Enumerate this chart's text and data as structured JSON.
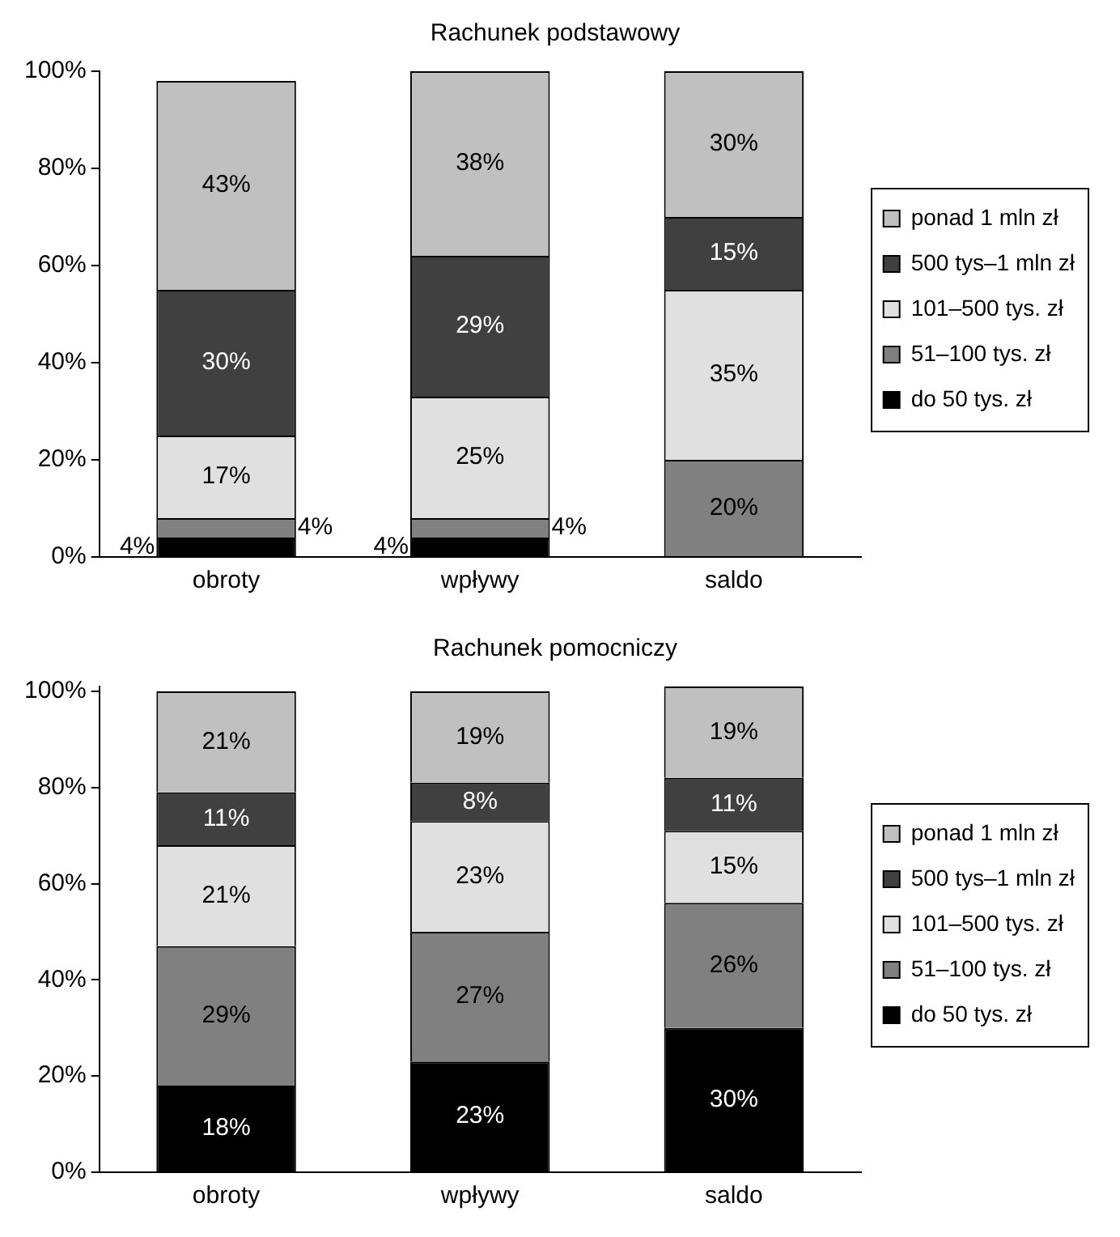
{
  "chart_data": [
    {
      "type": "bar",
      "title": "Rachunek podstawowy",
      "stacked": true,
      "categories": [
        "obroty",
        "wpływy",
        "saldo"
      ],
      "series": [
        {
          "name": "do 50 tys. zł",
          "color": "#000000",
          "values": [
            4,
            4,
            null
          ],
          "value_labels": [
            "4%",
            "4%",
            null
          ]
        },
        {
          "name": "51–100 tys. zł",
          "color": "#808080",
          "values": [
            4,
            4,
            20
          ],
          "value_labels": [
            "4%",
            "4%",
            "20%"
          ]
        },
        {
          "name": "101–500 tys. zł",
          "color": "#e0e0e0",
          "values": [
            17,
            25,
            35
          ],
          "value_labels": [
            "17%",
            "25%",
            "35%"
          ]
        },
        {
          "name": "500 tys–1 mln zł",
          "color": "#404040",
          "values": [
            30,
            29,
            15
          ],
          "value_labels": [
            "30%",
            "29%",
            "15%"
          ]
        },
        {
          "name": "ponad 1 mln zł",
          "color": "#c0c0c0",
          "values": [
            43,
            38,
            30
          ],
          "value_labels": [
            "43%",
            "38%",
            "30%"
          ]
        }
      ],
      "ylim": [
        0,
        100
      ],
      "yticks": [
        {
          "value": 0,
          "label": "0%"
        },
        {
          "value": 20,
          "label": "20%"
        },
        {
          "value": 40,
          "label": "40%"
        },
        {
          "value": 60,
          "label": "60%"
        },
        {
          "value": 80,
          "label": "80%"
        },
        {
          "value": 100,
          "label": "100%"
        }
      ],
      "grid": false,
      "legend": "right"
    },
    {
      "type": "bar",
      "title": "Rachunek pomocniczy",
      "stacked": true,
      "categories": [
        "obroty",
        "wpływy",
        "saldo"
      ],
      "series": [
        {
          "name": "do 50 tys. zł",
          "color": "#000000",
          "values": [
            18,
            23,
            30
          ],
          "value_labels": [
            "18%",
            "23%",
            "30%"
          ]
        },
        {
          "name": "51–100 tys. zł",
          "color": "#808080",
          "values": [
            29,
            27,
            26
          ],
          "value_labels": [
            "29%",
            "27%",
            "26%"
          ]
        },
        {
          "name": "101–500 tys. zł",
          "color": "#e0e0e0",
          "values": [
            21,
            23,
            15
          ],
          "value_labels": [
            "21%",
            "23%",
            "15%"
          ]
        },
        {
          "name": "500 tys–1 mln zł",
          "color": "#404040",
          "values": [
            11,
            8,
            11
          ],
          "value_labels": [
            "11%",
            "8%",
            "11%"
          ]
        },
        {
          "name": "ponad 1 mln zł",
          "color": "#c0c0c0",
          "values": [
            21,
            19,
            19
          ],
          "value_labels": [
            "21%",
            "19%",
            "19%"
          ]
        }
      ],
      "ylim": [
        0,
        101
      ],
      "yticks": [
        {
          "value": 0,
          "label": "0%"
        },
        {
          "value": 20,
          "label": "20%"
        },
        {
          "value": 40,
          "label": "40%"
        },
        {
          "value": 60,
          "label": "60%"
        },
        {
          "value": 80,
          "label": "80%"
        },
        {
          "value": 100,
          "label": "100%"
        }
      ],
      "grid": false,
      "legend": "right"
    }
  ]
}
